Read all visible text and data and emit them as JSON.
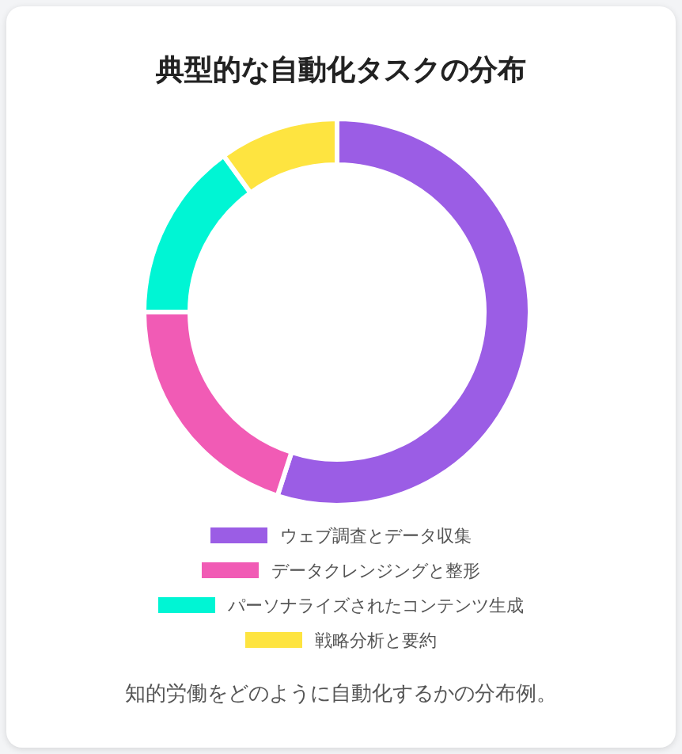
{
  "chart_data": {
    "type": "donut",
    "title": "典型的な自動化タスクの分布",
    "categories": [
      "ウェブ調査とデータ収集",
      "データクレンジングと整形",
      "パーソナライズされたコンテンツ生成",
      "戦略分析と要約"
    ],
    "values": [
      55,
      20,
      15,
      10
    ],
    "colors": [
      "#9b5de5",
      "#f15bb5",
      "#00f5d4",
      "#fee440"
    ],
    "legend": "bottom",
    "annotations": [
      "知的労働をどのように自動化するかの分布例。"
    ]
  }
}
